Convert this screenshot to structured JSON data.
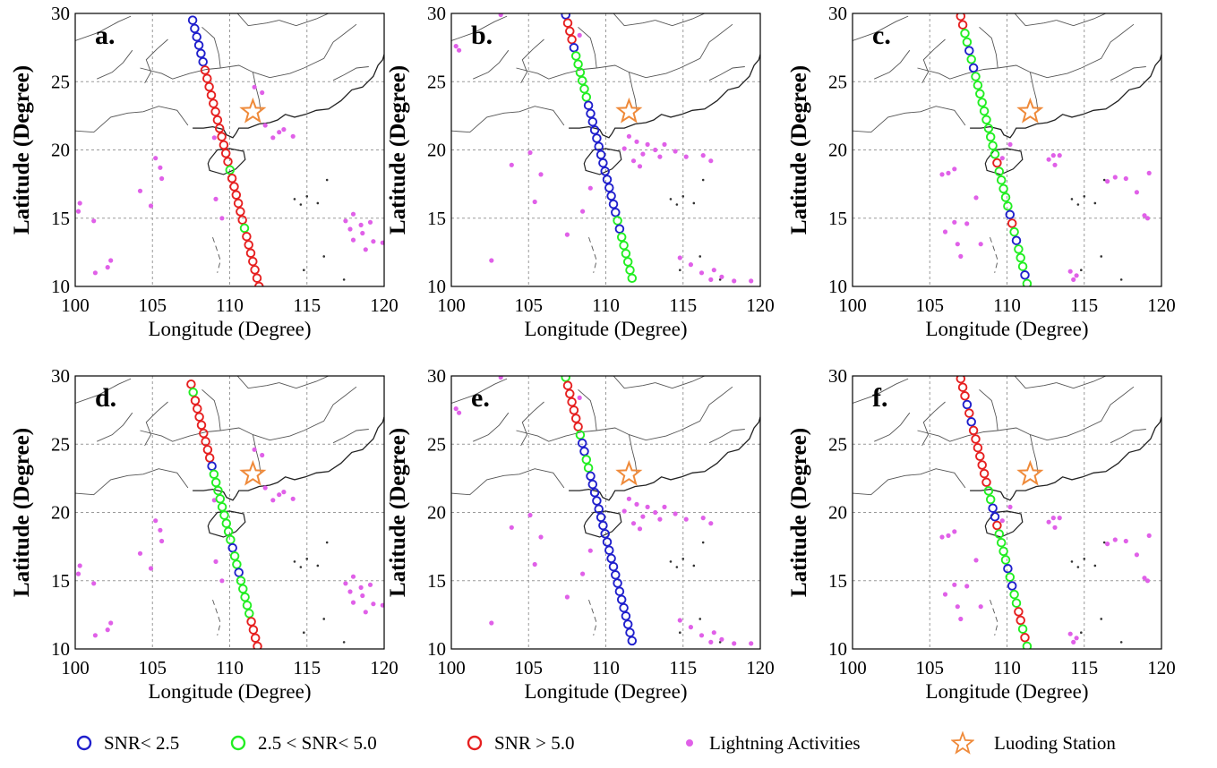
{
  "figure": {
    "panels": [
      {
        "id": "a",
        "label": "a.",
        "xlabel": "Longitude (Degree)",
        "ylabel": "Latitude (Degree)"
      },
      {
        "id": "b",
        "label": "b.",
        "xlabel": "Longitude (Degree)",
        "ylabel": "Latitude (Degree)"
      },
      {
        "id": "c",
        "label": "c.",
        "xlabel": "Longitude (Degree)",
        "ylabel": "Latitude (Degree)"
      },
      {
        "id": "d",
        "label": "d.",
        "xlabel": "Longitude (Degree)",
        "ylabel": "Latitude (Degree)"
      },
      {
        "id": "e",
        "label": "e.",
        "xlabel": "Longitude (Degree)",
        "ylabel": "Latitude (Degree)"
      },
      {
        "id": "f",
        "label": "f.",
        "xlabel": "Longitude (Degree)",
        "ylabel": "Latitude (Degree)"
      }
    ],
    "xticks": [
      "100",
      "105",
      "110",
      "115",
      "120"
    ],
    "yticks": [
      "10",
      "15",
      "20",
      "25",
      "30"
    ],
    "legend": [
      {
        "label": "SNR< 2.5",
        "marker": "circle",
        "color": "#1f1fcc"
      },
      {
        "label": "2.5 < SNR< 5.0",
        "marker": "circle",
        "color": "#22ee22"
      },
      {
        "label": "SNR > 5.0",
        "marker": "circle",
        "color": "#e62020"
      },
      {
        "label": "Lightning Activities",
        "marker": "dot",
        "color": "#e060e8"
      },
      {
        "label": "Luoding Station",
        "marker": "star",
        "color": "#ef8a3a"
      }
    ]
  },
  "chart_data": {
    "type": "scatter",
    "xlim": [
      100,
      120
    ],
    "ylim": [
      10,
      30
    ],
    "grid": true,
    "station": {
      "name": "Luoding Station",
      "lon": 111.5,
      "lat": 22.8
    },
    "colors": {
      "low": "#1f1fcc",
      "mid": "#22ee22",
      "high": "#e62020",
      "lightning": "#e060e8",
      "station": "#ef8a3a"
    },
    "panels": [
      {
        "id": "a",
        "track": {
          "start": [
            107.6,
            29.5
          ],
          "end": [
            111.9,
            10.0
          ],
          "n": 33
        },
        "snr_classes": "LLLLLLHHHHHHHHHHHHMHHHHHHMHHHHHHH",
        "lightning": [
          [
            111.6,
            24.6
          ],
          [
            112.1,
            24.2
          ],
          [
            112.3,
            21.8
          ],
          [
            113.2,
            21.3
          ],
          [
            113.5,
            21.5
          ],
          [
            114.1,
            21.0
          ],
          [
            112.8,
            20.9
          ],
          [
            109.0,
            20.9
          ],
          [
            105.2,
            19.4
          ],
          [
            105.5,
            18.7
          ],
          [
            105.6,
            17.9
          ],
          [
            104.2,
            17.0
          ],
          [
            104.9,
            15.9
          ],
          [
            109.1,
            16.4
          ],
          [
            109.5,
            15.0
          ],
          [
            100.3,
            16.1
          ],
          [
            100.2,
            15.5
          ],
          [
            101.2,
            14.8
          ],
          [
            102.3,
            11.9
          ],
          [
            102.1,
            11.4
          ],
          [
            101.3,
            11.0
          ],
          [
            118.0,
            15.3
          ],
          [
            117.5,
            14.8
          ],
          [
            118.5,
            14.5
          ],
          [
            119.1,
            14.7
          ],
          [
            117.8,
            14.2
          ],
          [
            118.6,
            13.9
          ],
          [
            119.3,
            13.3
          ],
          [
            118.0,
            13.4
          ],
          [
            119.9,
            13.2
          ],
          [
            118.8,
            12.7
          ]
        ]
      },
      {
        "id": "b",
        "track": {
          "start": [
            107.4,
            29.9
          ],
          "end": [
            111.7,
            10.6
          ],
          "n": 33
        },
        "snr_classes": "LHHHLMMMMMMLLLLLLLLLLLLLLMLMMMMMM",
        "lightning": [
          [
            100.3,
            27.6
          ],
          [
            100.5,
            27.3
          ],
          [
            103.2,
            29.9
          ],
          [
            108.3,
            28.4
          ],
          [
            111.5,
            21.0
          ],
          [
            111.2,
            20.1
          ],
          [
            112.0,
            20.6
          ],
          [
            112.7,
            20.4
          ],
          [
            113.2,
            20.0
          ],
          [
            113.8,
            20.4
          ],
          [
            112.4,
            19.7
          ],
          [
            113.5,
            19.5
          ],
          [
            111.8,
            19.2
          ],
          [
            112.2,
            18.8
          ],
          [
            114.5,
            19.9
          ],
          [
            115.2,
            19.5
          ],
          [
            116.3,
            19.6
          ],
          [
            116.8,
            19.2
          ],
          [
            105.1,
            19.8
          ],
          [
            103.9,
            18.9
          ],
          [
            105.8,
            18.2
          ],
          [
            109.0,
            17.2
          ],
          [
            105.4,
            16.2
          ],
          [
            107.5,
            13.8
          ],
          [
            102.6,
            11.9
          ],
          [
            108.5,
            15.5
          ],
          [
            115.5,
            11.6
          ],
          [
            116.2,
            11.0
          ],
          [
            117.0,
            11.2
          ],
          [
            117.5,
            10.7
          ],
          [
            118.3,
            10.4
          ],
          [
            119.4,
            10.4
          ],
          [
            116.8,
            10.5
          ],
          [
            114.8,
            12.1
          ]
        ]
      },
      {
        "id": "c",
        "track": {
          "start": [
            107.0,
            29.8
          ],
          "end": [
            111.3,
            10.2
          ],
          "n": 32
        },
        "snr_classes": "HHMMLMLMMMMMMMMMMHMMMMMLHMLMMMLM",
        "lightning": [
          [
            106.6,
            18.6
          ],
          [
            106.2,
            18.3
          ],
          [
            105.8,
            18.2
          ],
          [
            108.0,
            16.5
          ],
          [
            109.7,
            19.4
          ],
          [
            110.2,
            20.4
          ],
          [
            112.7,
            19.3
          ],
          [
            113.0,
            19.6
          ],
          [
            113.4,
            19.6
          ],
          [
            113.1,
            18.9
          ],
          [
            116.5,
            17.7
          ],
          [
            117.0,
            18.0
          ],
          [
            117.7,
            17.9
          ],
          [
            119.2,
            18.3
          ],
          [
            118.4,
            16.9
          ],
          [
            119.1,
            15.0
          ],
          [
            118.9,
            15.2
          ],
          [
            106.6,
            14.7
          ],
          [
            107.4,
            14.6
          ],
          [
            106.8,
            13.1
          ],
          [
            107.0,
            12.2
          ],
          [
            108.3,
            13.1
          ],
          [
            114.1,
            11.1
          ],
          [
            114.5,
            10.8
          ],
          [
            114.3,
            10.5
          ],
          [
            106.0,
            14.0
          ]
        ]
      },
      {
        "id": "d",
        "track": {
          "start": [
            107.5,
            29.4
          ],
          "end": [
            111.8,
            10.2
          ],
          "n": 33
        },
        "snr_classes": "HMHHHHHHHHLMMMMMMMMMLMMLMMMMMHHHH",
        "lightning": [
          [
            111.6,
            24.6
          ],
          [
            112.1,
            24.2
          ],
          [
            112.3,
            21.8
          ],
          [
            113.2,
            21.3
          ],
          [
            113.5,
            21.5
          ],
          [
            114.1,
            21.0
          ],
          [
            112.8,
            20.9
          ],
          [
            109.0,
            20.9
          ],
          [
            105.2,
            19.4
          ],
          [
            105.5,
            18.7
          ],
          [
            105.6,
            17.9
          ],
          [
            104.2,
            17.0
          ],
          [
            104.9,
            15.9
          ],
          [
            109.1,
            16.4
          ],
          [
            109.5,
            15.0
          ],
          [
            100.3,
            16.1
          ],
          [
            100.2,
            15.5
          ],
          [
            101.2,
            14.8
          ],
          [
            102.3,
            11.9
          ],
          [
            102.1,
            11.4
          ],
          [
            101.3,
            11.0
          ],
          [
            118.0,
            15.3
          ],
          [
            117.5,
            14.8
          ],
          [
            118.5,
            14.5
          ],
          [
            119.1,
            14.7
          ],
          [
            117.8,
            14.2
          ],
          [
            118.6,
            13.9
          ],
          [
            119.3,
            13.3
          ],
          [
            118.0,
            13.4
          ],
          [
            119.9,
            13.2
          ],
          [
            118.8,
            12.7
          ]
        ]
      },
      {
        "id": "e",
        "track": {
          "start": [
            107.4,
            29.9
          ],
          "end": [
            111.7,
            10.6
          ],
          "n": 33
        },
        "snr_classes": "MHHHHHHMLLMMLLLLLLLLLLLLLLLLLLLLL",
        "lightning": [
          [
            100.3,
            27.6
          ],
          [
            100.5,
            27.3
          ],
          [
            103.2,
            29.9
          ],
          [
            108.3,
            28.4
          ],
          [
            111.5,
            21.0
          ],
          [
            111.2,
            20.1
          ],
          [
            112.0,
            20.6
          ],
          [
            112.7,
            20.4
          ],
          [
            113.2,
            20.0
          ],
          [
            113.8,
            20.4
          ],
          [
            112.4,
            19.7
          ],
          [
            113.5,
            19.5
          ],
          [
            111.8,
            19.2
          ],
          [
            112.2,
            18.8
          ],
          [
            114.5,
            19.9
          ],
          [
            115.2,
            19.5
          ],
          [
            116.3,
            19.6
          ],
          [
            116.8,
            19.2
          ],
          [
            105.1,
            19.8
          ],
          [
            103.9,
            18.9
          ],
          [
            105.8,
            18.2
          ],
          [
            109.0,
            17.2
          ],
          [
            105.4,
            16.2
          ],
          [
            107.5,
            13.8
          ],
          [
            102.6,
            11.9
          ],
          [
            108.5,
            15.5
          ],
          [
            115.5,
            11.6
          ],
          [
            116.2,
            11.0
          ],
          [
            117.0,
            11.2
          ],
          [
            117.5,
            10.7
          ],
          [
            118.3,
            10.4
          ],
          [
            119.4,
            10.4
          ],
          [
            116.8,
            10.5
          ],
          [
            114.8,
            12.1
          ]
        ]
      },
      {
        "id": "f",
        "track": {
          "start": [
            107.0,
            29.8
          ],
          "end": [
            111.3,
            10.2
          ],
          "n": 32
        },
        "snr_classes": "HHHLHLHHHHHHHMMLLHMMMMLMLMMHHMHM",
        "lightning": [
          [
            106.6,
            18.6
          ],
          [
            106.2,
            18.3
          ],
          [
            105.8,
            18.2
          ],
          [
            108.0,
            16.5
          ],
          [
            109.7,
            19.4
          ],
          [
            110.2,
            20.4
          ],
          [
            112.7,
            19.3
          ],
          [
            113.0,
            19.6
          ],
          [
            113.4,
            19.6
          ],
          [
            113.1,
            18.9
          ],
          [
            116.5,
            17.7
          ],
          [
            117.0,
            18.0
          ],
          [
            117.7,
            17.9
          ],
          [
            119.2,
            18.3
          ],
          [
            118.4,
            16.9
          ],
          [
            119.1,
            15.0
          ],
          [
            118.9,
            15.2
          ],
          [
            106.6,
            14.7
          ],
          [
            107.4,
            14.6
          ],
          [
            106.8,
            13.1
          ],
          [
            107.0,
            12.2
          ],
          [
            108.3,
            13.1
          ],
          [
            114.1,
            11.1
          ],
          [
            114.5,
            10.8
          ],
          [
            114.3,
            10.5
          ],
          [
            106.0,
            14.0
          ]
        ]
      }
    ]
  }
}
